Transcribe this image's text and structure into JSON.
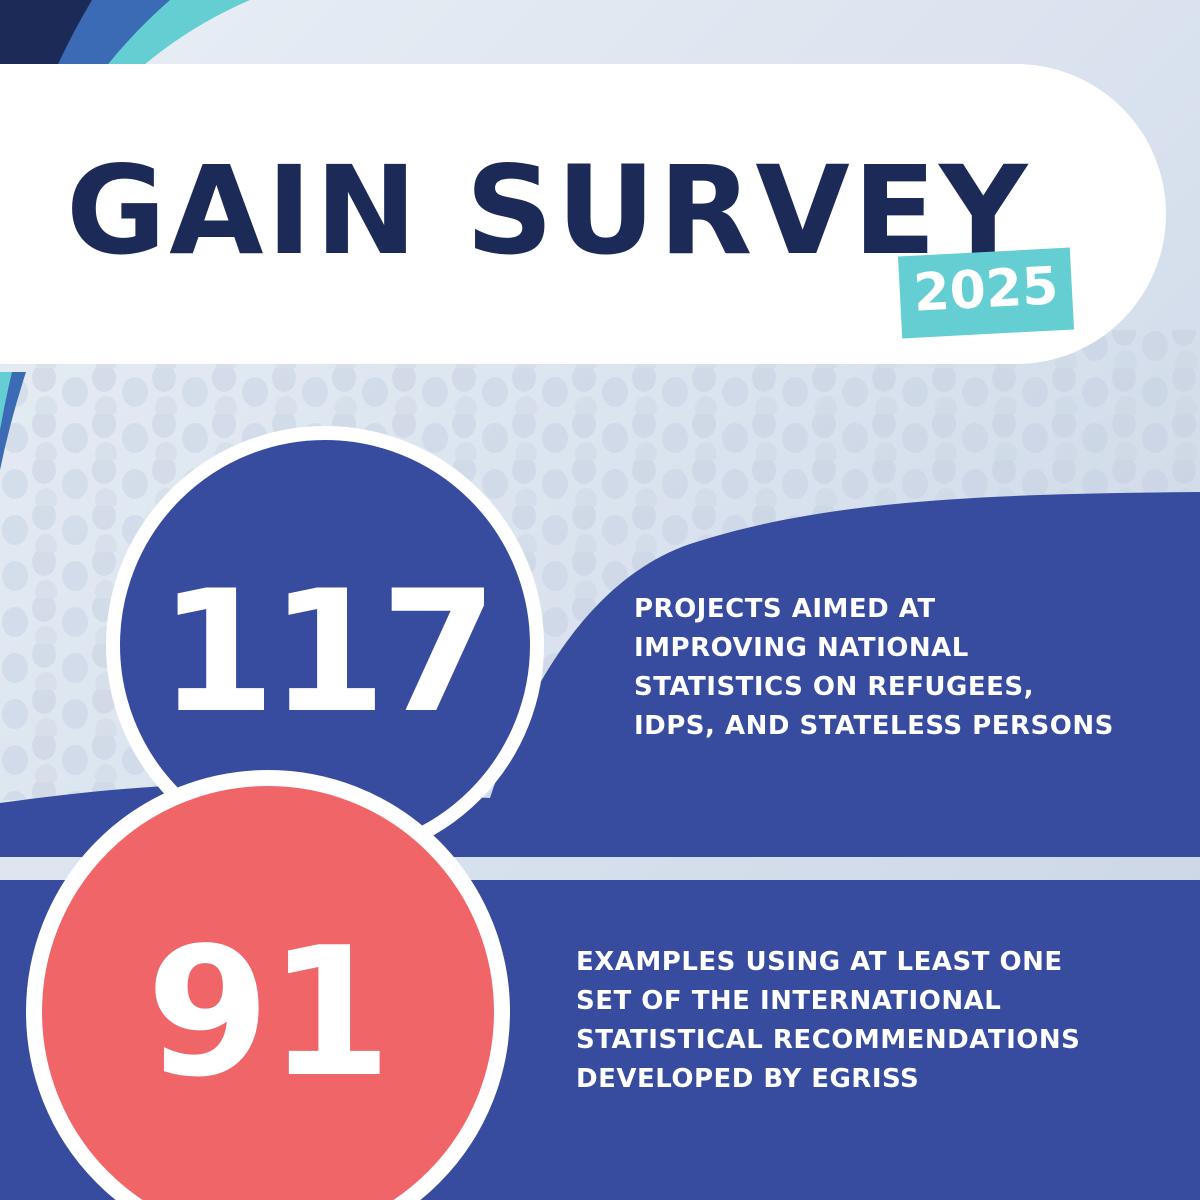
{
  "title": "GAIN SURVEY",
  "year": "2025",
  "stats": [
    {
      "value": "117",
      "lines": [
        "PROJECTS AIMED AT",
        "IMPROVING NATIONAL",
        "STATISTICS ON REFUGEES,",
        "IDPS, AND STATELESS PERSONS"
      ]
    },
    {
      "value": "91",
      "lines": [
        "EXAMPLES USING AT LEAST ONE",
        "SET OF THE INTERNATIONAL",
        "STATISTICAL RECOMMENDATIONS",
        "DEVELOPED BY EGRISS"
      ]
    }
  ],
  "colors": {
    "navy": "#1c2a57",
    "royal_blue": "#384c9f",
    "coral": "#ef6568",
    "teal": "#65ced3",
    "white": "#ffffff",
    "background": "#dfe6ef"
  }
}
